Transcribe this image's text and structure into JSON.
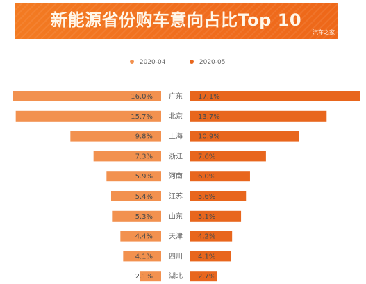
{
  "header": {
    "title": "新能源省份购车意向占比Top 10",
    "watermark": "汽车之家"
  },
  "colors": {
    "banner_start": "#f37b22",
    "banner_end": "#ee6819",
    "series_2020_04": "#f2914f",
    "series_2020_05": "#e8661d",
    "text_primary": "#4a4a4a",
    "text_secondary": "#666666",
    "background": "#ffffff"
  },
  "chart_data": {
    "type": "bar",
    "categories": [
      "广东",
      "北京",
      "上海",
      "浙江",
      "河南",
      "江苏",
      "山东",
      "天津",
      "四川",
      "湖北"
    ],
    "series": [
      {
        "name": "2020-04",
        "values": [
          16.0,
          15.7,
          9.8,
          7.3,
          5.9,
          5.4,
          5.3,
          4.4,
          4.1,
          2.1
        ],
        "labels": [
          "16.0%",
          "15.7%",
          "9.8%",
          "7.3%",
          "5.9%",
          "5.4%",
          "5.3%",
          "4.4%",
          "4.1%",
          "2.1%"
        ]
      },
      {
        "name": "2020-05",
        "values": [
          17.1,
          13.7,
          10.9,
          7.6,
          6.0,
          5.6,
          5.1,
          4.2,
          4.1,
          2.7
        ],
        "labels": [
          "17.1%",
          "13.7%",
          "10.9%",
          "7.6%",
          "6.0%",
          "5.6%",
          "5.1%",
          "4.2%",
          "4.1%",
          "2.7%"
        ]
      }
    ],
    "title": "新能源省份购车意向占比Top 10",
    "xlabel": "",
    "ylabel": "",
    "ylim": [
      0,
      17.1
    ],
    "legend": "top-center",
    "grid": false,
    "orientation": "horizontal-butterfly"
  }
}
